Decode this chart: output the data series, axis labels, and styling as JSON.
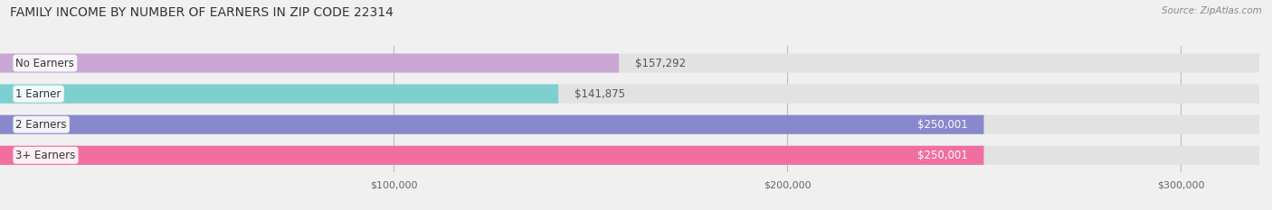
{
  "title": "FAMILY INCOME BY NUMBER OF EARNERS IN ZIP CODE 22314",
  "source": "Source: ZipAtlas.com",
  "categories": [
    "No Earners",
    "1 Earner",
    "2 Earners",
    "3+ Earners"
  ],
  "values": [
    157292,
    141875,
    250001,
    250001
  ],
  "bar_colors": [
    "#c9a8d4",
    "#7ecfcf",
    "#8888cc",
    "#f06fa0"
  ],
  "bar_labels": [
    "$157,292",
    "$141,875",
    "$250,001",
    "$250,001"
  ],
  "xlim": [
    0,
    320000
  ],
  "xticks": [
    100000,
    200000,
    300000
  ],
  "xtick_labels": [
    "$100,000",
    "$200,000",
    "$300,000"
  ],
  "background_color": "#f0f0f0",
  "bar_bg_color": "#e2e2e2",
  "title_fontsize": 10,
  "label_fontsize": 8.5,
  "bar_height": 0.62
}
